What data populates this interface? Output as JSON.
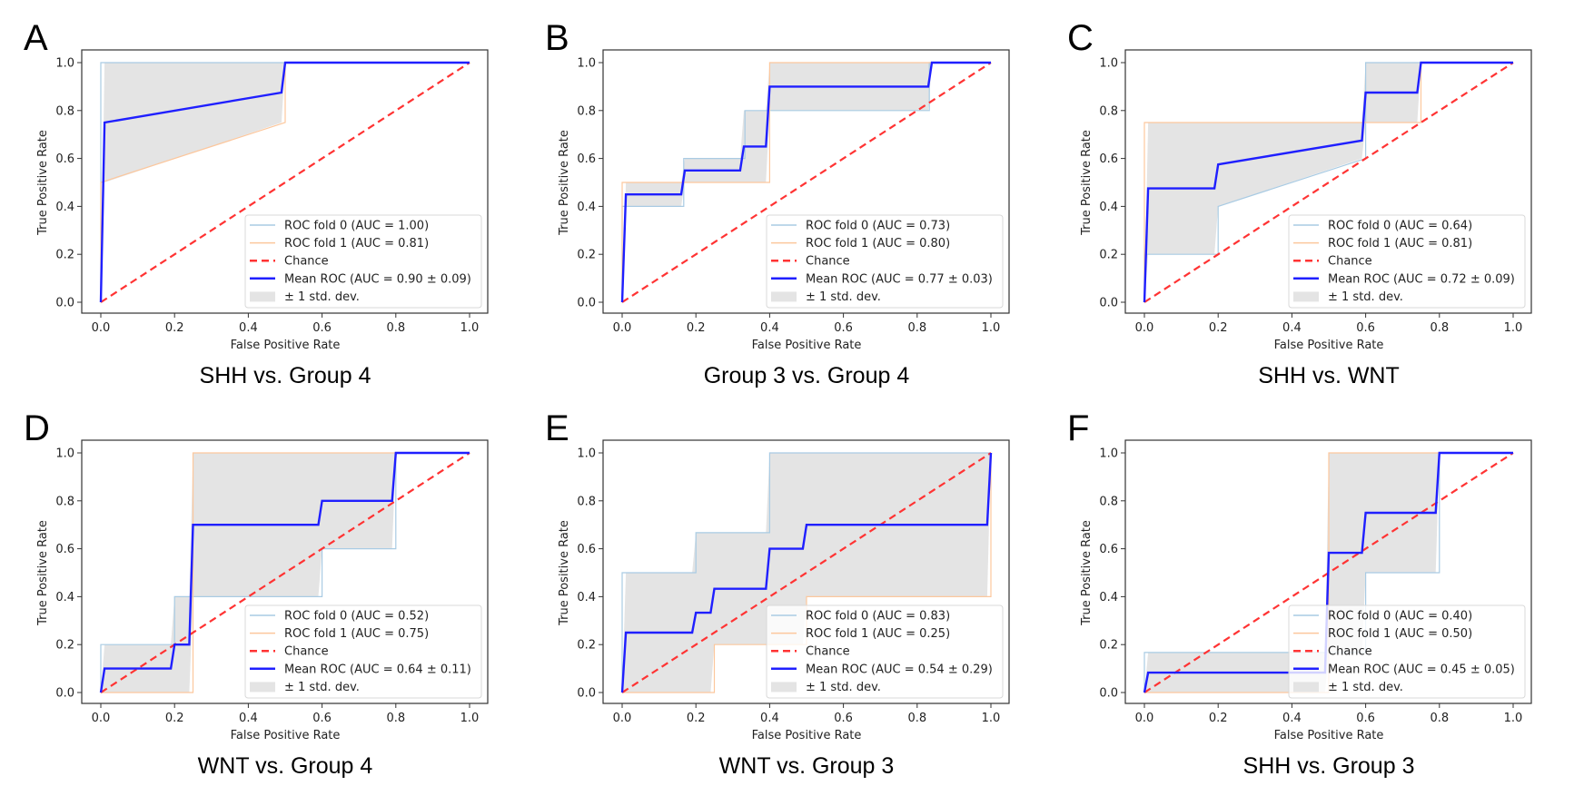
{
  "figure": {
    "colors": {
      "fold0": "#a9cbe3",
      "fold1": "#fcc79d",
      "chance": "#ff3333",
      "mean": "#1f1fff",
      "std_fill": "#e4e4e4",
      "axes_edge": "#333333",
      "legend_edge": "#d8d8d8"
    }
  },
  "chart_data": [
    {
      "type": "line",
      "panel": "A",
      "title": "SHH vs. Group 4",
      "xlabel": "False Positive Rate",
      "ylabel": "True Positive Rate",
      "xlim": [
        0,
        1
      ],
      "ylim": [
        0,
        1
      ],
      "xticks": [
        "0.0",
        "0.2",
        "0.4",
        "0.6",
        "0.8",
        "1.0"
      ],
      "yticks": [
        "0.0",
        "0.2",
        "0.4",
        "0.6",
        "0.8",
        "1.0"
      ],
      "legend_position": "lower-right",
      "legend": [
        "ROC fold 0 (AUC = 1.00)",
        "ROC fold 1 (AUC = 0.81)",
        "Chance",
        "Mean ROC (AUC = 0.90 ± 0.09)",
        "± 1 std. dev."
      ],
      "series": [
        {
          "name": "ROC fold 0",
          "x": [
            0,
            0,
            1
          ],
          "y": [
            0,
            1,
            1
          ]
        },
        {
          "name": "ROC fold 1",
          "x": [
            0,
            0,
            0.5,
            0.5,
            1
          ],
          "y": [
            0,
            0.5,
            0.75,
            1,
            1
          ]
        },
        {
          "name": "Chance",
          "x": [
            0,
            1
          ],
          "y": [
            0,
            1
          ]
        },
        {
          "name": "Mean ROC",
          "x": [
            0,
            0.01,
            0.49,
            0.5,
            1
          ],
          "y": [
            0,
            0.75,
            0.875,
            1,
            1
          ]
        }
      ],
      "std_band": {
        "x": [
          0,
          0.01,
          0.49,
          0.5,
          1
        ],
        "upper": [
          0,
          1,
          1,
          1,
          1
        ],
        "lower": [
          0,
          0.5,
          0.75,
          1,
          1
        ]
      }
    },
    {
      "type": "line",
      "panel": "B",
      "title": "Group 3 vs. Group 4",
      "xlabel": "False Positive Rate",
      "ylabel": "True Positive Rate",
      "xlim": [
        0,
        1
      ],
      "ylim": [
        0,
        1
      ],
      "xticks": [
        "0.0",
        "0.2",
        "0.4",
        "0.6",
        "0.8",
        "1.0"
      ],
      "yticks": [
        "0.0",
        "0.2",
        "0.4",
        "0.6",
        "0.8",
        "1.0"
      ],
      "legend_position": "lower-right",
      "legend": [
        "ROC fold 0 (AUC = 0.73)",
        "ROC fold 1 (AUC = 0.80)",
        "Chance",
        "Mean ROC (AUC = 0.77 ± 0.03)",
        "± 1 std. dev."
      ],
      "series": [
        {
          "name": "ROC fold 0",
          "x": [
            0,
            0,
            0.167,
            0.167,
            0.333,
            0.333,
            0.833,
            0.833,
            1
          ],
          "y": [
            0,
            0.4,
            0.4,
            0.6,
            0.6,
            0.8,
            0.8,
            1,
            1
          ]
        },
        {
          "name": "ROC fold 1",
          "x": [
            0,
            0,
            0.4,
            0.4,
            1
          ],
          "y": [
            0,
            0.5,
            0.5,
            1,
            1
          ]
        },
        {
          "name": "Chance",
          "x": [
            0,
            1
          ],
          "y": [
            0,
            1
          ]
        },
        {
          "name": "Mean ROC",
          "x": [
            0,
            0.01,
            0.16,
            0.17,
            0.32,
            0.33,
            0.39,
            0.4,
            0.83,
            0.84,
            1
          ],
          "y": [
            0,
            0.45,
            0.45,
            0.55,
            0.55,
            0.65,
            0.65,
            0.9,
            0.9,
            1,
            1
          ]
        }
      ],
      "std_band": {
        "x": [
          0,
          0.01,
          0.16,
          0.17,
          0.32,
          0.33,
          0.39,
          0.4,
          0.83,
          0.84,
          1
        ],
        "upper": [
          0,
          0.5,
          0.5,
          0.6,
          0.6,
          0.8,
          0.8,
          1,
          1,
          1,
          1
        ],
        "lower": [
          0,
          0.4,
          0.4,
          0.5,
          0.5,
          0.5,
          0.5,
          0.8,
          0.8,
          1,
          1
        ]
      }
    },
    {
      "type": "line",
      "panel": "C",
      "title": "SHH vs. WNT",
      "xlabel": "False Positive Rate",
      "ylabel": "True Positive Rate",
      "xlim": [
        0,
        1
      ],
      "ylim": [
        0,
        1
      ],
      "xticks": [
        "0.0",
        "0.2",
        "0.4",
        "0.6",
        "0.8",
        "1.0"
      ],
      "yticks": [
        "0.0",
        "0.2",
        "0.4",
        "0.6",
        "0.8",
        "1.0"
      ],
      "legend_position": "lower-right",
      "legend": [
        "ROC fold 0 (AUC = 0.64)",
        "ROC fold 1 (AUC = 0.81)",
        "Chance",
        "Mean ROC (AUC = 0.72 ± 0.09)",
        "± 1 std. dev."
      ],
      "series": [
        {
          "name": "ROC fold 0",
          "x": [
            0,
            0,
            0.2,
            0.2,
            0.6,
            0.6,
            1
          ],
          "y": [
            0,
            0.2,
            0.2,
            0.4,
            0.6,
            1,
            1
          ]
        },
        {
          "name": "ROC fold 1",
          "x": [
            0,
            0,
            0.75,
            0.75,
            1
          ],
          "y": [
            0,
            0.75,
            0.75,
            1,
            1
          ]
        },
        {
          "name": "Chance",
          "x": [
            0,
            1
          ],
          "y": [
            0,
            1
          ]
        },
        {
          "name": "Mean ROC",
          "x": [
            0,
            0.01,
            0.19,
            0.2,
            0.59,
            0.6,
            0.74,
            0.75,
            1
          ],
          "y": [
            0,
            0.475,
            0.475,
            0.575,
            0.675,
            0.875,
            0.875,
            1,
            1
          ]
        }
      ],
      "std_band": {
        "x": [
          0,
          0.01,
          0.19,
          0.2,
          0.59,
          0.6,
          0.74,
          0.75,
          1
        ],
        "upper": [
          0,
          0.75,
          0.75,
          0.75,
          0.75,
          1,
          1,
          1,
          1
        ],
        "lower": [
          0,
          0.2,
          0.2,
          0.4,
          0.6,
          0.75,
          0.75,
          1,
          1
        ]
      }
    },
    {
      "type": "line",
      "panel": "D",
      "title": "WNT vs. Group 4",
      "xlabel": "False Positive Rate",
      "ylabel": "True Positive Rate",
      "xlim": [
        0,
        1
      ],
      "ylim": [
        0,
        1
      ],
      "xticks": [
        "0.0",
        "0.2",
        "0.4",
        "0.6",
        "0.8",
        "1.0"
      ],
      "yticks": [
        "0.0",
        "0.2",
        "0.4",
        "0.6",
        "0.8",
        "1.0"
      ],
      "legend_position": "lower-right",
      "legend": [
        "ROC fold 0 (AUC = 0.52)",
        "ROC fold 1 (AUC = 0.75)",
        "Chance",
        "Mean ROC (AUC = 0.64 ± 0.11)",
        "± 1 std. dev."
      ],
      "series": [
        {
          "name": "ROC fold 0",
          "x": [
            0,
            0,
            0.2,
            0.2,
            0.6,
            0.6,
            0.8,
            0.8,
            1
          ],
          "y": [
            0,
            0.2,
            0.2,
            0.4,
            0.4,
            0.6,
            0.6,
            1,
            1
          ]
        },
        {
          "name": "ROC fold 1",
          "x": [
            0,
            0.25,
            0.25,
            1
          ],
          "y": [
            0,
            0,
            1,
            1
          ]
        },
        {
          "name": "Chance",
          "x": [
            0,
            1
          ],
          "y": [
            0,
            1
          ]
        },
        {
          "name": "Mean ROC",
          "x": [
            0,
            0.01,
            0.19,
            0.2,
            0.24,
            0.25,
            0.59,
            0.6,
            0.79,
            0.8,
            1
          ],
          "y": [
            0,
            0.1,
            0.1,
            0.2,
            0.2,
            0.7,
            0.7,
            0.8,
            0.8,
            1,
            1
          ]
        }
      ],
      "std_band": {
        "x": [
          0,
          0.01,
          0.19,
          0.2,
          0.24,
          0.25,
          0.59,
          0.6,
          0.79,
          0.8,
          1
        ],
        "upper": [
          0,
          0.2,
          0.2,
          0.4,
          0.4,
          1,
          1,
          1,
          1,
          1,
          1
        ],
        "lower": [
          0,
          0,
          0,
          0,
          0,
          0.4,
          0.4,
          0.6,
          0.6,
          1,
          1
        ]
      }
    },
    {
      "type": "line",
      "panel": "E",
      "title": "WNT vs. Group 3",
      "xlabel": "False Positive Rate",
      "ylabel": "True Positive Rate",
      "xlim": [
        0,
        1
      ],
      "ylim": [
        0,
        1
      ],
      "xticks": [
        "0.0",
        "0.2",
        "0.4",
        "0.6",
        "0.8",
        "1.0"
      ],
      "yticks": [
        "0.0",
        "0.2",
        "0.4",
        "0.6",
        "0.8",
        "1.0"
      ],
      "legend_position": "lower-right",
      "legend": [
        "ROC fold 0 (AUC = 0.83)",
        "ROC fold 1 (AUC = 0.25)",
        "Chance",
        "Mean ROC (AUC = 0.54 ± 0.29)",
        "± 1 std. dev."
      ],
      "series": [
        {
          "name": "ROC fold 0",
          "x": [
            0,
            0,
            0.2,
            0.2,
            0.4,
            0.4,
            1
          ],
          "y": [
            0,
            0.5,
            0.5,
            0.667,
            0.667,
            1,
            1
          ]
        },
        {
          "name": "ROC fold 1",
          "x": [
            0,
            0.25,
            0.25,
            0.5,
            0.5,
            1,
            1
          ],
          "y": [
            0,
            0,
            0.2,
            0.2,
            0.4,
            0.4,
            1
          ]
        },
        {
          "name": "Chance",
          "x": [
            0,
            1
          ],
          "y": [
            0,
            1
          ]
        },
        {
          "name": "Mean ROC",
          "x": [
            0,
            0.01,
            0.19,
            0.2,
            0.24,
            0.25,
            0.39,
            0.4,
            0.49,
            0.5,
            0.99,
            1
          ],
          "y": [
            0,
            0.25,
            0.25,
            0.333,
            0.333,
            0.433,
            0.433,
            0.6,
            0.6,
            0.7,
            0.7,
            1
          ]
        }
      ],
      "std_band": {
        "x": [
          0,
          0.01,
          0.19,
          0.2,
          0.24,
          0.25,
          0.39,
          0.4,
          0.49,
          0.5,
          0.99,
          1
        ],
        "upper": [
          0,
          0.5,
          0.5,
          0.667,
          0.667,
          0.667,
          0.667,
          1,
          1,
          1,
          1,
          1
        ],
        "lower": [
          0,
          0,
          0,
          0,
          0,
          0.2,
          0.2,
          0.2,
          0.2,
          0.4,
          0.4,
          1
        ]
      }
    },
    {
      "type": "line",
      "panel": "F",
      "title": "SHH vs. Group 3",
      "xlabel": "False Positive Rate",
      "ylabel": "True Positive Rate",
      "xlim": [
        0,
        1
      ],
      "ylim": [
        0,
        1
      ],
      "xticks": [
        "0.0",
        "0.2",
        "0.4",
        "0.6",
        "0.8",
        "1.0"
      ],
      "yticks": [
        "0.0",
        "0.2",
        "0.4",
        "0.6",
        "0.8",
        "1.0"
      ],
      "legend_position": "lower-right",
      "legend": [
        "ROC fold 0 (AUC = 0.40)",
        "ROC fold 1 (AUC = 0.50)",
        "Chance",
        "Mean ROC (AUC = 0.45 ± 0.05)",
        "± 1 std. dev."
      ],
      "series": [
        {
          "name": "ROC fold 0",
          "x": [
            0,
            0,
            0.6,
            0.6,
            0.8,
            0.8,
            1
          ],
          "y": [
            0,
            0.167,
            0.167,
            0.5,
            0.5,
            1,
            1
          ]
        },
        {
          "name": "ROC fold 1",
          "x": [
            0,
            0.5,
            0.5,
            1
          ],
          "y": [
            0,
            0,
            1,
            1
          ]
        },
        {
          "name": "Chance",
          "x": [
            0,
            1
          ],
          "y": [
            0,
            1
          ]
        },
        {
          "name": "Mean ROC",
          "x": [
            0,
            0.01,
            0.49,
            0.5,
            0.59,
            0.6,
            0.79,
            0.8,
            1
          ],
          "y": [
            0,
            0.083,
            0.083,
            0.583,
            0.583,
            0.75,
            0.75,
            1,
            1
          ]
        }
      ],
      "std_band": {
        "x": [
          0,
          0.01,
          0.49,
          0.5,
          0.59,
          0.6,
          0.79,
          0.8,
          1
        ],
        "upper": [
          0,
          0.167,
          0.167,
          1,
          1,
          1,
          1,
          1,
          1
        ],
        "lower": [
          0,
          0,
          0,
          0.167,
          0.167,
          0.5,
          0.5,
          1,
          1
        ]
      }
    }
  ]
}
